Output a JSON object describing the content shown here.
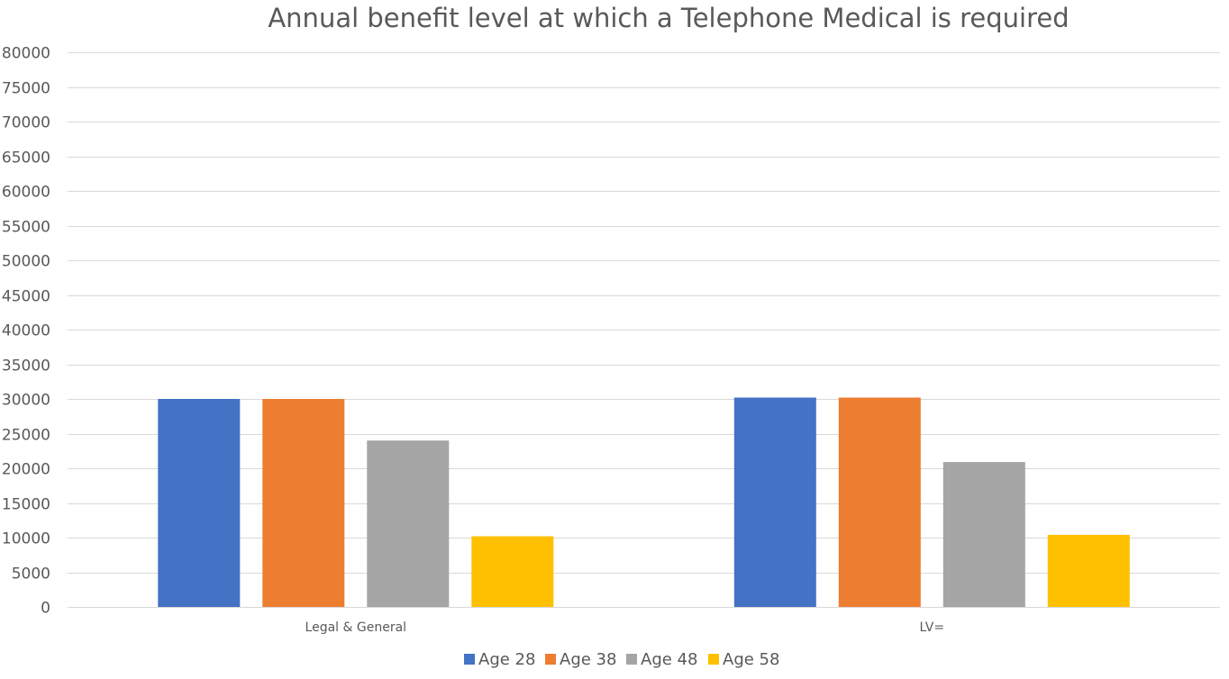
{
  "chart_data": {
    "type": "bar",
    "title": "Annual benefit level at which a Telephone Medical is required",
    "xlabel": "",
    "ylabel": "",
    "categories": [
      "Legal & General",
      "LV="
    ],
    "series": [
      {
        "name": "Age 28",
        "color": "#4472c4",
        "values": [
          30000,
          30200
        ]
      },
      {
        "name": "Age 38",
        "color": "#ed7d31",
        "values": [
          30000,
          30200
        ]
      },
      {
        "name": "Age 48",
        "color": "#a5a5a5",
        "values": [
          24000,
          20900
        ]
      },
      {
        "name": "Age 58",
        "color": "#ffc000",
        "values": [
          10200,
          10400
        ]
      }
    ],
    "ylim": [
      0,
      80000
    ],
    "yticks": [
      "0",
      "5000",
      "10000",
      "15000",
      "20000",
      "25000",
      "30000",
      "35000",
      "40000",
      "45000",
      "50000",
      "55000",
      "60000",
      "65000",
      "70000",
      "75000",
      "80000"
    ],
    "grid": true,
    "legend_position": "bottom"
  }
}
